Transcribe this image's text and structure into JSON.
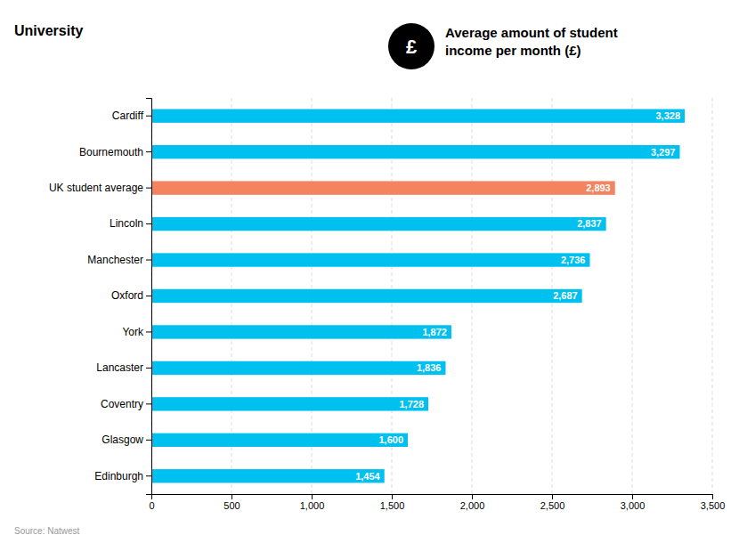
{
  "chart_data": {
    "type": "bar",
    "orientation": "horizontal",
    "title": "Average amount of student\nincome per month (£)",
    "ylabel": "University",
    "annotations": [
      {
        "text": "£"
      },
      {
        "text": "Source: Natwest"
      }
    ],
    "categories": [
      "Cardiff",
      "Bournemouth",
      "UK student average",
      "Lincoln",
      "Manchester",
      "Oxford",
      "York",
      "Lancaster",
      "Coventry",
      "Glasgow",
      "Edinburgh"
    ],
    "values": [
      3328,
      3297,
      2893,
      2837,
      2736,
      2687,
      1872,
      1836,
      1728,
      1600,
      1454
    ],
    "value_labels": [
      "3,328",
      "3,297",
      "2,893",
      "2,837",
      "2,736",
      "2,687",
      "1,872",
      "1,836",
      "1,728",
      "1,600",
      "1,454"
    ],
    "data_labels": true,
    "colors": [
      "#00C0F0",
      "#00C0F0",
      "#F4845F",
      "#00C0F0",
      "#00C0F0",
      "#00C0F0",
      "#00C0F0",
      "#00C0F0",
      "#00C0F0",
      "#00C0F0",
      "#00C0F0"
    ],
    "xlim": [
      0,
      3500
    ],
    "xticks": [
      0,
      500,
      {
        "value": 1000,
        "label": "1,000"
      },
      {
        "value": 1500,
        "label": "1,500"
      },
      {
        "value": 2000,
        "label": "2,000"
      },
      {
        "value": 2500,
        "label": "2,500"
      },
      {
        "value": 3000,
        "label": "3,000"
      },
      {
        "value": 3500,
        "label": "3,500"
      }
    ],
    "grid": true
  }
}
